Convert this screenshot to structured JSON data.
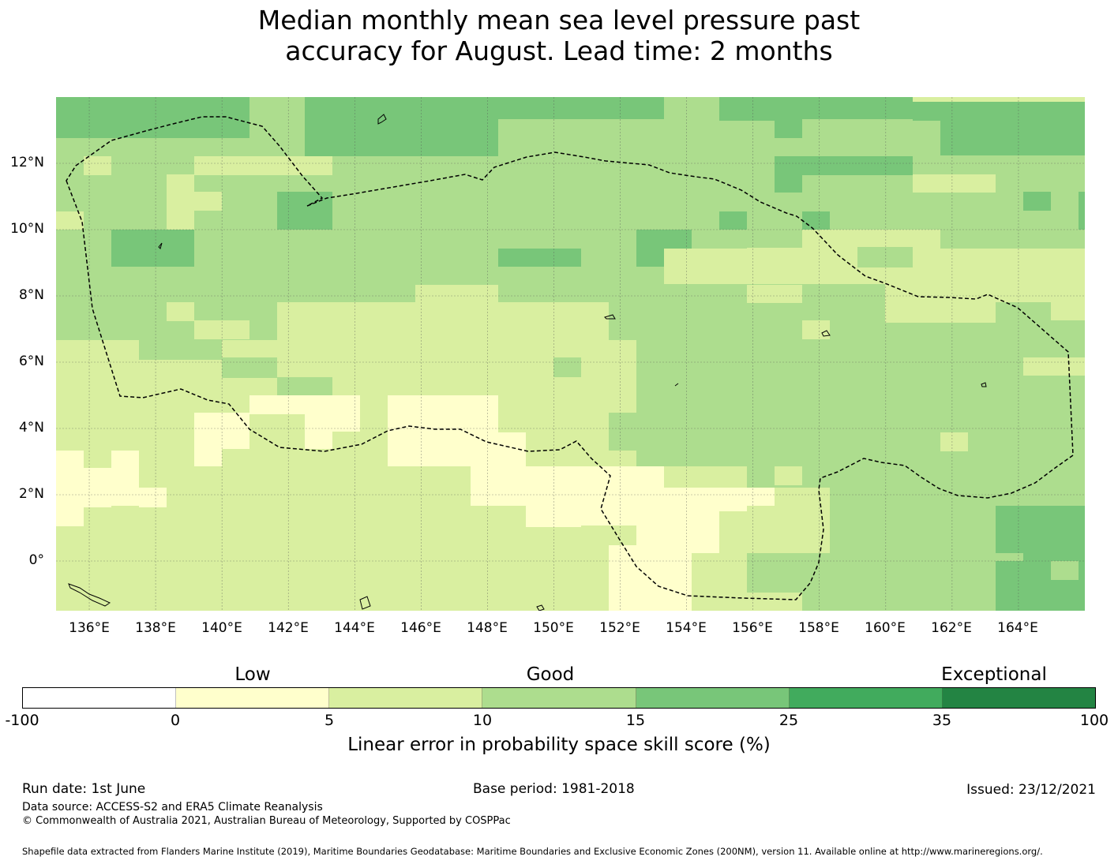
{
  "title_line1": "Median monthly mean sea level pressure past",
  "title_line2": "accuracy for August. Lead time: 2 months",
  "map": {
    "lat_labels": [
      "12°N",
      "10°N",
      "8°N",
      "6°N",
      "4°N",
      "2°N",
      "0°"
    ],
    "lon_labels": [
      "136°E",
      "138°E",
      "140°E",
      "142°E",
      "144°E",
      "146°E",
      "148°E",
      "150°E",
      "152°E",
      "154°E",
      "156°E",
      "158°E",
      "160°E",
      "162°E",
      "164°E"
    ],
    "lon_range": [
      135,
      166
    ],
    "lat_range": [
      -1.5,
      14
    ],
    "grid": "on",
    "dominant_classes": [
      "5 to 10",
      "10 to 15",
      "15 to 25",
      "0 to 5"
    ]
  },
  "colorbar": {
    "category_labels": [
      "Low",
      "Good",
      "Exceptional"
    ],
    "ticks": [
      "-100",
      "0",
      "5",
      "10",
      "15",
      "25",
      "35",
      "100"
    ],
    "colors": [
      "#ffffff",
      "#ffffcc",
      "#d9efa0",
      "#addd8e",
      "#78c679",
      "#41ab5d",
      "#238443"
    ],
    "label": "Linear error in probability space skill score (%)"
  },
  "footer": {
    "run_date": "Run date: 1st June",
    "base_period": "Base period: 1981-2018",
    "issued": "Issued: 23/12/2021",
    "data_source": "Data source: ACCESS-S2 and ERA5 Climate Reanalysis",
    "copyright": "© Commonwealth of Australia 2021, Australian Bureau of Meteorology, Supported by COSPPac",
    "shapefile": "Shapefile data extracted from Flanders Marine Institute (2019), Maritime Boundaries Geodatabase: Maritime Boundaries and Exclusive Economic Zones (200NM), version 11. Available online at http://www.marineregions.org/."
  }
}
